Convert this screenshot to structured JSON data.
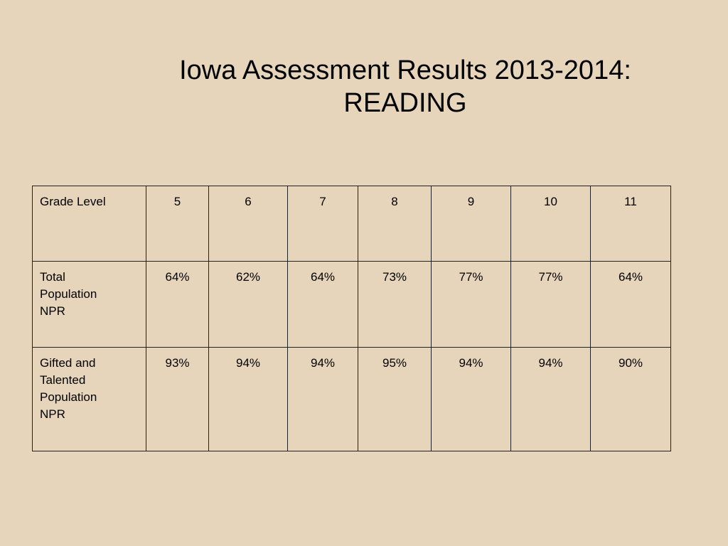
{
  "title": [
    "Iowa Assessment Results 2013-2014:",
    "READING"
  ],
  "table": {
    "header": [
      "Grade Level",
      "5",
      "6",
      "7",
      "8",
      "9",
      "10",
      "11"
    ],
    "rows": [
      [
        "Total Population NPR",
        "64%",
        "62%",
        "64%",
        "73%",
        "77%",
        "77%",
        "64%"
      ],
      [
        "Gifted and Talented Population NPR",
        "93%",
        "94%",
        "94%",
        "95%",
        "94%",
        "94%",
        "90%"
      ]
    ]
  }
}
